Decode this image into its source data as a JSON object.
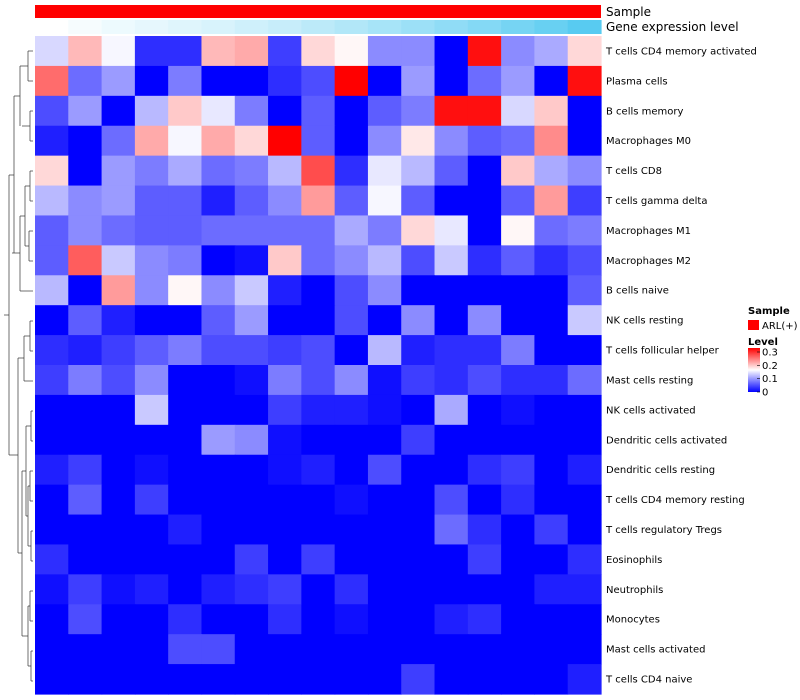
{
  "chart_data": {
    "type": "heatmap",
    "title": "",
    "annotations": {
      "sample_label": "Sample",
      "gene_label": "Gene expression level"
    },
    "rows": [
      "T cells CD4 memory activated",
      "Plasma cells",
      "B cells memory",
      "Macrophages M0",
      "T cells CD8",
      "T cells gamma delta",
      "Macrophages M1",
      "Macrophages M2",
      "B cells naive",
      "NK cells resting",
      "T cells follicular helper",
      "Mast cells resting",
      "NK cells activated",
      "Dendritic cells activated",
      "Dendritic cells resting",
      "T cells CD4 memory resting",
      "T cells regulatory  Tregs",
      "Eosinophils",
      "Neutrophils",
      "Monocytes",
      "Mast cells activated",
      "T cells CD4 naive"
    ],
    "values": [
      [
        0.14,
        0.21,
        0.16,
        0.03,
        0.03,
        0.21,
        0.22,
        0.04,
        0.19,
        0.17,
        0.09,
        0.09,
        0.0,
        0.32,
        0.09,
        0.11,
        0.19
      ],
      [
        0.26,
        0.07,
        0.1,
        0.0,
        0.08,
        0.0,
        0.0,
        0.03,
        0.05,
        0.33,
        0.0,
        0.1,
        0.0,
        0.07,
        0.1,
        0.0,
        0.32
      ],
      [
        0.05,
        0.1,
        0.0,
        0.12,
        0.2,
        0.15,
        0.08,
        0.0,
        0.06,
        0.0,
        0.06,
        0.08,
        0.32,
        0.32,
        0.14,
        0.2,
        0.0
      ],
      [
        0.02,
        0.0,
        0.07,
        0.22,
        0.16,
        0.22,
        0.19,
        0.33,
        0.06,
        0.0,
        0.09,
        0.18,
        0.09,
        0.06,
        0.07,
        0.24,
        0.0
      ],
      [
        0.19,
        0.0,
        0.1,
        0.08,
        0.11,
        0.07,
        0.08,
        0.12,
        0.28,
        0.03,
        0.15,
        0.12,
        0.06,
        0.0,
        0.2,
        0.11,
        0.09
      ],
      [
        0.12,
        0.09,
        0.1,
        0.06,
        0.06,
        0.02,
        0.06,
        0.09,
        0.23,
        0.06,
        0.16,
        0.06,
        0.0,
        0.0,
        0.06,
        0.23,
        0.04
      ],
      [
        0.06,
        0.09,
        0.07,
        0.06,
        0.06,
        0.07,
        0.07,
        0.07,
        0.07,
        0.11,
        0.08,
        0.19,
        0.15,
        0.0,
        0.17,
        0.07,
        0.08
      ],
      [
        0.06,
        0.27,
        0.13,
        0.09,
        0.08,
        0.0,
        0.01,
        0.2,
        0.07,
        0.09,
        0.12,
        0.05,
        0.13,
        0.03,
        0.06,
        0.03,
        0.05
      ],
      [
        0.12,
        0.0,
        0.23,
        0.09,
        0.17,
        0.09,
        0.13,
        0.02,
        0.0,
        0.05,
        0.09,
        0.0,
        0.0,
        0.0,
        0.0,
        0.0,
        0.06
      ],
      [
        0.0,
        0.06,
        0.02,
        0.0,
        0.0,
        0.06,
        0.1,
        0.0,
        0.0,
        0.05,
        0.0,
        0.09,
        0.0,
        0.09,
        0.0,
        0.0,
        0.13
      ],
      [
        0.03,
        0.02,
        0.04,
        0.06,
        0.08,
        0.05,
        0.05,
        0.04,
        0.05,
        0.0,
        0.12,
        0.02,
        0.03,
        0.03,
        0.08,
        0.0,
        0.0
      ],
      [
        0.04,
        0.08,
        0.05,
        0.09,
        0.0,
        0.0,
        0.01,
        0.08,
        0.05,
        0.09,
        0.01,
        0.04,
        0.03,
        0.05,
        0.03,
        0.03,
        0.07
      ],
      [
        0.0,
        0.0,
        0.0,
        0.13,
        0.0,
        0.0,
        0.0,
        0.04,
        0.02,
        0.02,
        0.01,
        0.0,
        0.11,
        0.0,
        0.01,
        0.0,
        0.0
      ],
      [
        0.0,
        0.0,
        0.0,
        0.0,
        0.0,
        0.1,
        0.09,
        0.01,
        0.0,
        0.0,
        0.0,
        0.04,
        0.0,
        0.0,
        0.0,
        0.0,
        0.0
      ],
      [
        0.02,
        0.04,
        0.0,
        0.01,
        0.0,
        0.0,
        0.0,
        0.01,
        0.02,
        0.0,
        0.05,
        0.0,
        0.0,
        0.03,
        0.04,
        0.0,
        0.02
      ],
      [
        0.0,
        0.06,
        0.0,
        0.04,
        0.0,
        0.0,
        0.0,
        0.0,
        0.0,
        0.01,
        0.0,
        0.0,
        0.05,
        0.0,
        0.03,
        0.0,
        0.0
      ],
      [
        0.0,
        0.0,
        0.0,
        0.0,
        0.02,
        0.0,
        0.0,
        0.0,
        0.0,
        0.0,
        0.0,
        0.0,
        0.07,
        0.03,
        0.0,
        0.04,
        0.0
      ],
      [
        0.03,
        0.0,
        0.0,
        0.0,
        0.0,
        0.0,
        0.04,
        0.0,
        0.04,
        0.0,
        0.0,
        0.0,
        0.0,
        0.04,
        0.0,
        0.0,
        0.03
      ],
      [
        0.01,
        0.04,
        0.01,
        0.02,
        0.0,
        0.02,
        0.03,
        0.04,
        0.0,
        0.03,
        0.0,
        0.0,
        0.0,
        0.0,
        0.0,
        0.02,
        0.02
      ],
      [
        0.0,
        0.05,
        0.0,
        0.0,
        0.03,
        0.0,
        0.0,
        0.03,
        0.0,
        0.01,
        0.0,
        0.0,
        0.02,
        0.03,
        0.0,
        0.0,
        0.0
      ],
      [
        0.0,
        0.0,
        0.0,
        0.0,
        0.05,
        0.05,
        0.0,
        0.0,
        0.0,
        0.0,
        0.0,
        0.0,
        0.0,
        0.0,
        0.0,
        0.0,
        0.0
      ],
      [
        0.0,
        0.0,
        0.0,
        0.0,
        0.0,
        0.0,
        0.0,
        0.0,
        0.0,
        0.0,
        0.0,
        0.04,
        0.0,
        0.0,
        0.0,
        0.0,
        0.02
      ]
    ],
    "gene_expression_level": [
      0.0,
      0.05,
      0.1,
      0.14,
      0.18,
      0.22,
      0.27,
      0.32,
      0.38,
      0.44,
      0.5,
      0.56,
      0.63,
      0.7,
      0.78,
      0.86,
      0.95
    ],
    "color_scale": {
      "min": 0,
      "max": 0.33,
      "low": "#0000ff",
      "mid": "#ffffff",
      "high": "#ff0000"
    },
    "legend": {
      "sample_title": "Sample",
      "sample_entry": "ARL(+)",
      "sample_color": "#ff0000",
      "level_title": "Level",
      "ticks": [
        "0.3",
        "0.2",
        "0.1",
        "0"
      ],
      "tick_values": [
        0.3,
        0.2,
        0.1,
        0
      ]
    },
    "gene_colors": {
      "low": "#ffffff",
      "high": "#4fc8f0"
    },
    "sample_bar_color": "#ff0000"
  }
}
